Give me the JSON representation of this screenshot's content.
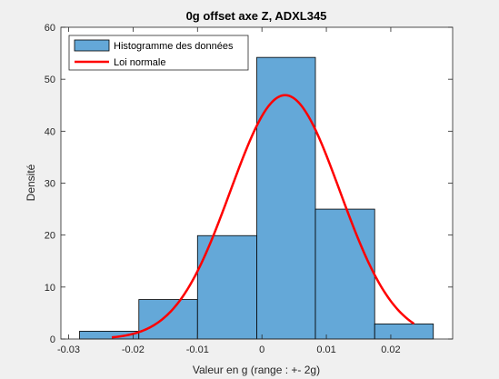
{
  "chart_data": {
    "type": "bar",
    "title": "0g offset axe Z, ADXL345",
    "xlabel": "Valeur en g (range : +- 2g)",
    "ylabel": "Densité",
    "xlim": [
      -0.0312,
      0.0296
    ],
    "ylim": [
      0,
      60
    ],
    "xticks": [
      -0.03,
      -0.02,
      -0.01,
      0,
      0.01,
      0.02
    ],
    "xtick_labels": [
      "-0.03",
      "-0.02",
      "-0.01",
      "0",
      "0.01",
      "0.02"
    ],
    "yticks": [
      0,
      10,
      20,
      30,
      40,
      50,
      60
    ],
    "ytick_labels": [
      "0",
      "10",
      "20",
      "30",
      "40",
      "50",
      "60"
    ],
    "grid": false,
    "legend_position": "top-left",
    "histogram": {
      "name": "Histogramme des données",
      "color": "#64a8d8",
      "bins": [
        {
          "x0": -0.0283,
          "x1": -0.0191,
          "value": 1.5
        },
        {
          "x0": -0.0191,
          "x1": -0.01,
          "value": 7.6
        },
        {
          "x0": -0.01,
          "x1": -0.0008,
          "value": 19.9
        },
        {
          "x0": -0.0008,
          "x1": 0.0083,
          "value": 54.2
        },
        {
          "x0": 0.0083,
          "x1": 0.0175,
          "value": 25.0
        },
        {
          "x0": 0.0175,
          "x1": 0.0266,
          "value": 2.9
        }
      ]
    },
    "normal_fit": {
      "name": "Loi normale",
      "color": "#ff0000",
      "mu": 0.0036,
      "sigma": 0.0085,
      "x_range": [
        -0.0233,
        0.0236
      ]
    }
  }
}
